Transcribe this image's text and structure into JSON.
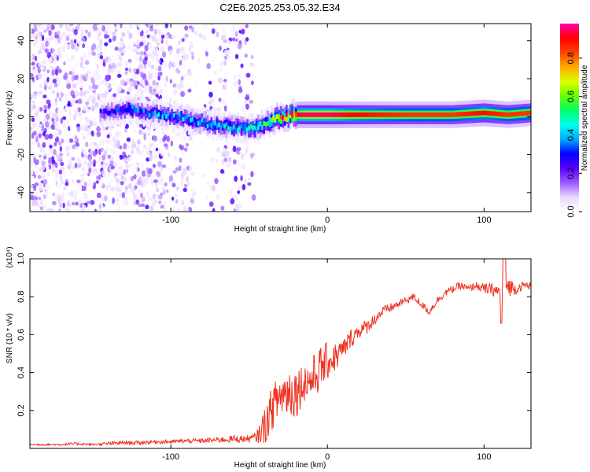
{
  "title": "C2E6.2025.253.05.32.E34",
  "chart_data": [
    {
      "type": "heatmap",
      "xlabel": "Height of straight line (km)",
      "ylabel": "Frequency (Hz)",
      "xlim": [
        -190,
        130
      ],
      "ylim": [
        -50,
        49
      ],
      "xticks": [
        -100,
        0,
        100
      ],
      "yticks": [
        -40,
        -20,
        0,
        20,
        40
      ],
      "colorbar": {
        "label": "Normalized spectral amplitude",
        "range": [
          0,
          0.98
        ],
        "ticks": [
          0.0,
          0.2,
          0.4,
          0.6,
          0.8
        ],
        "colormap": [
          "#ffffff",
          "#e8d8ff",
          "#9b59ff",
          "#5a00ff",
          "#0000ff",
          "#00aaff",
          "#00ffee",
          "#00ff66",
          "#66ff00",
          "#ddff00",
          "#ffaa00",
          "#ff4400",
          "#ff0000",
          "#ff00aa"
        ]
      },
      "ridge": {
        "x": [
          -145,
          -135,
          -125,
          -115,
          -105,
          -95,
          -85,
          -75,
          -65,
          -55,
          -47,
          -40,
          -33,
          -27,
          -22,
          -15,
          0,
          20,
          50,
          80,
          100,
          115,
          130
        ],
        "freq_hz": [
          2,
          3,
          4,
          2,
          1,
          0,
          -2,
          -4,
          -5,
          -6,
          -6,
          -4,
          -1,
          0,
          1,
          1,
          1,
          1,
          1,
          1,
          2,
          1,
          2
        ],
        "amplitude": [
          0.25,
          0.3,
          0.35,
          0.35,
          0.4,
          0.4,
          0.42,
          0.42,
          0.45,
          0.45,
          0.5,
          0.5,
          0.7,
          0.85,
          0.9,
          0.95,
          0.95,
          0.9,
          0.85,
          0.85,
          0.9,
          0.85,
          0.85
        ]
      },
      "noise_region_x": [
        -190,
        -47
      ]
    },
    {
      "type": "line",
      "xlabel": "Height of straight line (km)",
      "ylabel": "SNR (10 * v/v)",
      "y_scale_label": "(x10⁴)",
      "xlim": [
        -190,
        130
      ],
      "ylim": [
        0,
        1.0
      ],
      "xticks": [
        -100,
        0,
        100
      ],
      "yticks": [
        0.2,
        0.4,
        0.6,
        0.8,
        1.0
      ],
      "color": "#ee3322",
      "x": [
        -190,
        -180,
        -170,
        -160,
        -150,
        -140,
        -130,
        -120,
        -110,
        -100,
        -90,
        -80,
        -70,
        -60,
        -50,
        -45,
        -40,
        -35,
        -30,
        -25,
        -20,
        -15,
        -10,
        -5,
        0,
        5,
        10,
        15,
        20,
        25,
        30,
        35,
        40,
        45,
        50,
        55,
        60,
        65,
        70,
        75,
        80,
        85,
        90,
        95,
        100,
        105,
        110,
        115,
        120,
        125,
        130
      ],
      "y": [
        0.02,
        0.02,
        0.02,
        0.025,
        0.02,
        0.025,
        0.03,
        0.03,
        0.035,
        0.035,
        0.04,
        0.04,
        0.045,
        0.05,
        0.05,
        0.06,
        0.12,
        0.22,
        0.28,
        0.3,
        0.3,
        0.35,
        0.36,
        0.42,
        0.46,
        0.48,
        0.52,
        0.58,
        0.62,
        0.64,
        0.68,
        0.72,
        0.74,
        0.76,
        0.78,
        0.8,
        0.76,
        0.72,
        0.78,
        0.82,
        0.84,
        0.86,
        0.84,
        0.86,
        0.84,
        0.84,
        0.82,
        0.86,
        0.84,
        0.86,
        0.86
      ],
      "noise_amp": [
        0.005,
        0.005,
        0.005,
        0.008,
        0.005,
        0.01,
        0.01,
        0.01,
        0.01,
        0.01,
        0.012,
        0.012,
        0.015,
        0.02,
        0.02,
        0.03,
        0.1,
        0.12,
        0.12,
        0.14,
        0.14,
        0.1,
        0.12,
        0.12,
        0.1,
        0.08,
        0.06,
        0.05,
        0.04,
        0.04,
        0.03,
        0.03,
        0.025,
        0.02,
        0.02,
        0.02,
        0.02,
        0.02,
        0.02,
        0.02,
        0.02,
        0.02,
        0.02,
        0.02,
        0.03,
        0.03,
        0.05,
        0.06,
        0.03,
        0.02,
        0.02
      ]
    }
  ]
}
